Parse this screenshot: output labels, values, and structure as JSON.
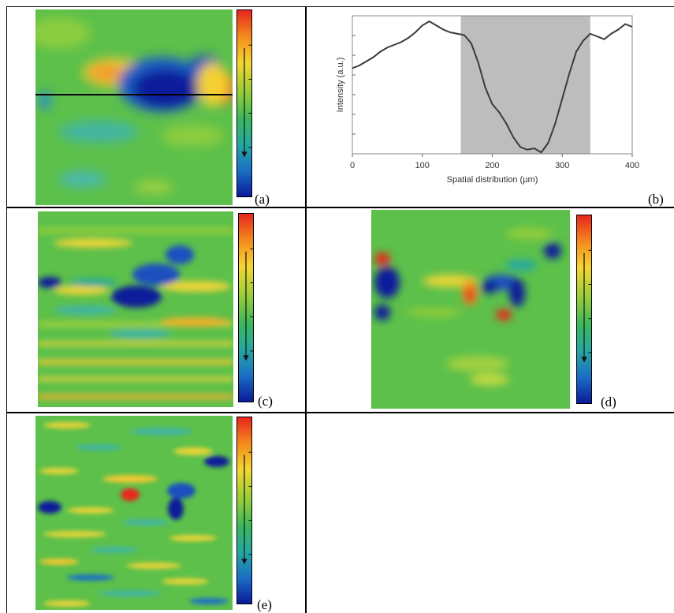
{
  "panels": {
    "a": {
      "label": "(a)"
    },
    "b": {
      "label": "(b)"
    },
    "c": {
      "label": "(c)"
    },
    "d": {
      "label": "(d)"
    },
    "e": {
      "label": "(e)"
    }
  },
  "chart_data": {
    "type": "line",
    "xlabel": "Spatial distribution (µm)",
    "ylabel": "Intensity (a.u.)",
    "xlim": [
      0,
      400
    ],
    "xticks": [
      "0",
      "100",
      "200",
      "300",
      "400"
    ],
    "shaded_region": [
      155,
      340
    ],
    "shaded_color": "#bdbdbd",
    "line_color": "#3a3a3a",
    "series": [
      {
        "x": [
          0,
          10,
          20,
          30,
          40,
          50,
          60,
          70,
          80,
          90,
          100,
          110,
          120,
          130,
          140,
          150,
          160,
          170,
          180,
          190,
          200,
          210,
          220,
          230,
          240,
          250,
          260,
          270,
          280,
          290,
          300,
          310,
          320,
          330,
          340,
          350,
          360,
          370,
          380,
          390,
          400
        ],
        "y": [
          0.62,
          0.64,
          0.67,
          0.7,
          0.74,
          0.77,
          0.79,
          0.81,
          0.84,
          0.88,
          0.93,
          0.96,
          0.93,
          0.9,
          0.88,
          0.87,
          0.86,
          0.8,
          0.66,
          0.48,
          0.36,
          0.3,
          0.22,
          0.12,
          0.05,
          0.03,
          0.04,
          0.01,
          0.08,
          0.22,
          0.4,
          0.58,
          0.74,
          0.82,
          0.87,
          0.85,
          0.83,
          0.87,
          0.9,
          0.94,
          0.92
        ]
      }
    ]
  },
  "colors": {
    "map_background": "#5cc04a",
    "colorbar_stops": [
      "#e8251e",
      "#f28a1e",
      "#f5d630",
      "#8fcc3a",
      "#3bb85a",
      "#25a8a0",
      "#1b6fc4",
      "#0a1a9a"
    ]
  }
}
